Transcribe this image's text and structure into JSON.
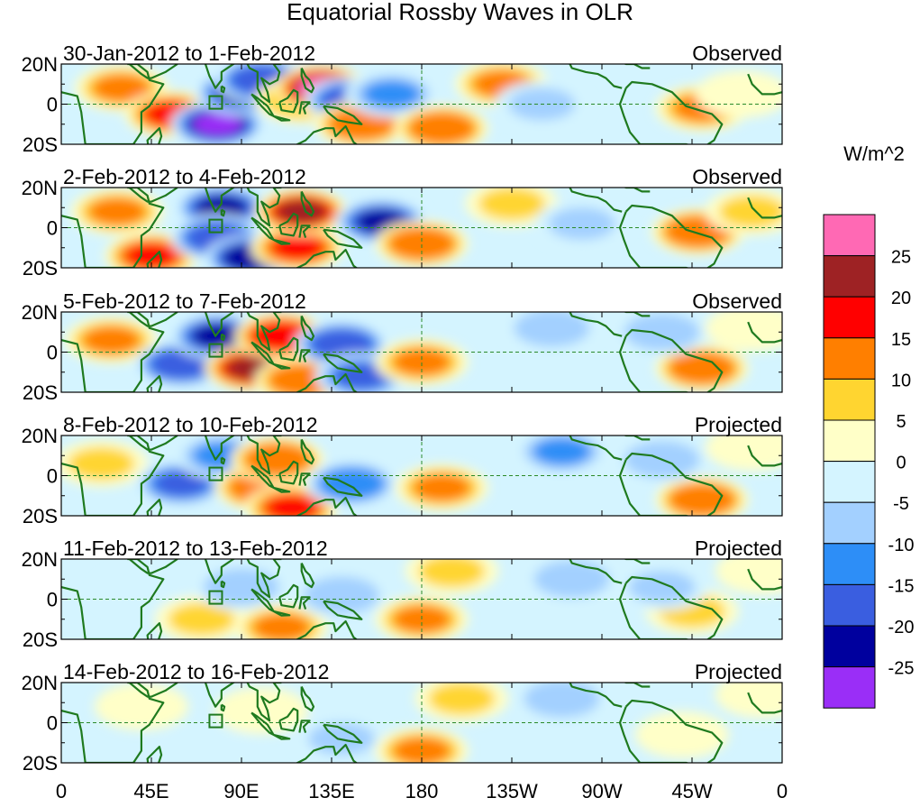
{
  "chart_data": {
    "type": "heatmap",
    "title": "Equatorial Rossby Waves in OLR",
    "units": "W/m^2",
    "x_tick_labels": [
      "0",
      "45E",
      "90E",
      "135E",
      "180",
      "135W",
      "90W",
      "45W",
      "0"
    ],
    "x_range_deg_east": [
      0,
      360
    ],
    "y_tick_labels": [
      "20N",
      "0",
      "20S"
    ],
    "y_range_deg": [
      -20,
      20
    ],
    "colorbar": {
      "levels": [
        25,
        20,
        15,
        10,
        5,
        0,
        -5,
        -10,
        -15,
        -20,
        -25
      ],
      "colors": [
        "#ff69b4",
        "#9e2224",
        "#ff0000",
        "#ff7f00",
        "#ffd530",
        "#ffffc8",
        "#d4f4ff",
        "#a3d0ff",
        "#2d8ef7",
        "#3a5ee0",
        "#00009e",
        "#9a2ef7"
      ],
      "labels": [
        "25",
        "20",
        "15",
        "10",
        "5",
        "0",
        "-5",
        "-10",
        "-15",
        "-20",
        "-25"
      ]
    },
    "panels": [
      {
        "date_range": "30-Jan-2012 to 1-Feb-2012",
        "kind": "Observed",
        "anomalies": [
          {
            "lon": 30,
            "lat": 8,
            "value": 12
          },
          {
            "lon": 55,
            "lat": -5,
            "value": 15
          },
          {
            "lon": 78,
            "lat": -10,
            "value": -26
          },
          {
            "lon": 90,
            "lat": 6,
            "value": -22
          },
          {
            "lon": 100,
            "lat": 12,
            "value": -18
          },
          {
            "lon": 120,
            "lat": 2,
            "value": 8
          },
          {
            "lon": 130,
            "lat": 8,
            "value": 26
          },
          {
            "lon": 145,
            "lat": 2,
            "value": -18
          },
          {
            "lon": 150,
            "lat": -10,
            "value": 14
          },
          {
            "lon": 165,
            "lat": 5,
            "value": -12
          },
          {
            "lon": 190,
            "lat": -12,
            "value": 14
          },
          {
            "lon": 220,
            "lat": 10,
            "value": 12
          },
          {
            "lon": 240,
            "lat": 0,
            "value": -6
          },
          {
            "lon": 320,
            "lat": -2,
            "value": 12
          },
          {
            "lon": 340,
            "lat": 5,
            "value": 4
          }
        ]
      },
      {
        "date_range": "2-Feb-2012 to 4-Feb-2012",
        "kind": "Observed",
        "anomalies": [
          {
            "lon": 28,
            "lat": 8,
            "value": 12
          },
          {
            "lon": 45,
            "lat": -14,
            "value": 16
          },
          {
            "lon": 80,
            "lat": 10,
            "value": -22
          },
          {
            "lon": 78,
            "lat": -5,
            "value": -20
          },
          {
            "lon": 95,
            "lat": -15,
            "value": -24
          },
          {
            "lon": 118,
            "lat": -10,
            "value": 16
          },
          {
            "lon": 120,
            "lat": 8,
            "value": 22
          },
          {
            "lon": 160,
            "lat": 3,
            "value": -22
          },
          {
            "lon": 180,
            "lat": -8,
            "value": 13
          },
          {
            "lon": 225,
            "lat": 12,
            "value": 7
          },
          {
            "lon": 260,
            "lat": 2,
            "value": -6
          },
          {
            "lon": 318,
            "lat": -2,
            "value": 13
          },
          {
            "lon": 345,
            "lat": 8,
            "value": 5
          }
        ]
      },
      {
        "date_range": "5-Feb-2012 to 7-Feb-2012",
        "kind": "Observed",
        "anomalies": [
          {
            "lon": 25,
            "lat": 6,
            "value": 10
          },
          {
            "lon": 60,
            "lat": -6,
            "value": -18
          },
          {
            "lon": 78,
            "lat": 8,
            "value": -22
          },
          {
            "lon": 95,
            "lat": -8,
            "value": 20
          },
          {
            "lon": 110,
            "lat": 8,
            "value": 18
          },
          {
            "lon": 120,
            "lat": -14,
            "value": 14
          },
          {
            "lon": 140,
            "lat": 4,
            "value": -18
          },
          {
            "lon": 150,
            "lat": -12,
            "value": -16
          },
          {
            "lon": 180,
            "lat": -5,
            "value": 12
          },
          {
            "lon": 245,
            "lat": 12,
            "value": -10
          },
          {
            "lon": 320,
            "lat": -8,
            "value": 14
          },
          {
            "lon": 300,
            "lat": 10,
            "value": -8
          },
          {
            "lon": 345,
            "lat": 12,
            "value": 4
          }
        ]
      },
      {
        "date_range": "8-Feb-2012 to 10-Feb-2012",
        "kind": "Projected",
        "anomalies": [
          {
            "lon": 20,
            "lat": 6,
            "value": 6
          },
          {
            "lon": 60,
            "lat": -4,
            "value": -16
          },
          {
            "lon": 80,
            "lat": 10,
            "value": -12
          },
          {
            "lon": 100,
            "lat": -6,
            "value": 14
          },
          {
            "lon": 108,
            "lat": 8,
            "value": 14
          },
          {
            "lon": 115,
            "lat": -16,
            "value": 16
          },
          {
            "lon": 145,
            "lat": -4,
            "value": -14
          },
          {
            "lon": 190,
            "lat": -6,
            "value": 10
          },
          {
            "lon": 250,
            "lat": 12,
            "value": -12
          },
          {
            "lon": 320,
            "lat": -12,
            "value": 14
          },
          {
            "lon": 300,
            "lat": 8,
            "value": -10
          },
          {
            "lon": 345,
            "lat": 14,
            "value": 4
          }
        ]
      },
      {
        "date_range": "11-Feb-2012 to 13-Feb-2012",
        "kind": "Projected",
        "anomalies": [
          {
            "lon": 40,
            "lat": 4,
            "value": -5
          },
          {
            "lon": 70,
            "lat": -10,
            "value": 6
          },
          {
            "lon": 90,
            "lat": 6,
            "value": -8
          },
          {
            "lon": 110,
            "lat": -14,
            "value": 12
          },
          {
            "lon": 140,
            "lat": 2,
            "value": -8
          },
          {
            "lon": 180,
            "lat": -10,
            "value": 10
          },
          {
            "lon": 195,
            "lat": 14,
            "value": 5
          },
          {
            "lon": 255,
            "lat": 10,
            "value": -10
          },
          {
            "lon": 315,
            "lat": -6,
            "value": 7
          },
          {
            "lon": 300,
            "lat": 6,
            "value": -6
          },
          {
            "lon": 350,
            "lat": 14,
            "value": 4
          }
        ]
      },
      {
        "date_range": "14-Feb-2012 to 16-Feb-2012",
        "kind": "Projected",
        "anomalies": [
          {
            "lon": 40,
            "lat": 8,
            "value": 4
          },
          {
            "lon": 75,
            "lat": -12,
            "value": -5
          },
          {
            "lon": 100,
            "lat": 6,
            "value": 4
          },
          {
            "lon": 140,
            "lat": -8,
            "value": -6
          },
          {
            "lon": 180,
            "lat": -14,
            "value": 12
          },
          {
            "lon": 200,
            "lat": 12,
            "value": 5
          },
          {
            "lon": 250,
            "lat": 12,
            "value": -8
          },
          {
            "lon": 310,
            "lat": -6,
            "value": 4
          },
          {
            "lon": 350,
            "lat": 14,
            "value": 4
          }
        ]
      }
    ]
  }
}
